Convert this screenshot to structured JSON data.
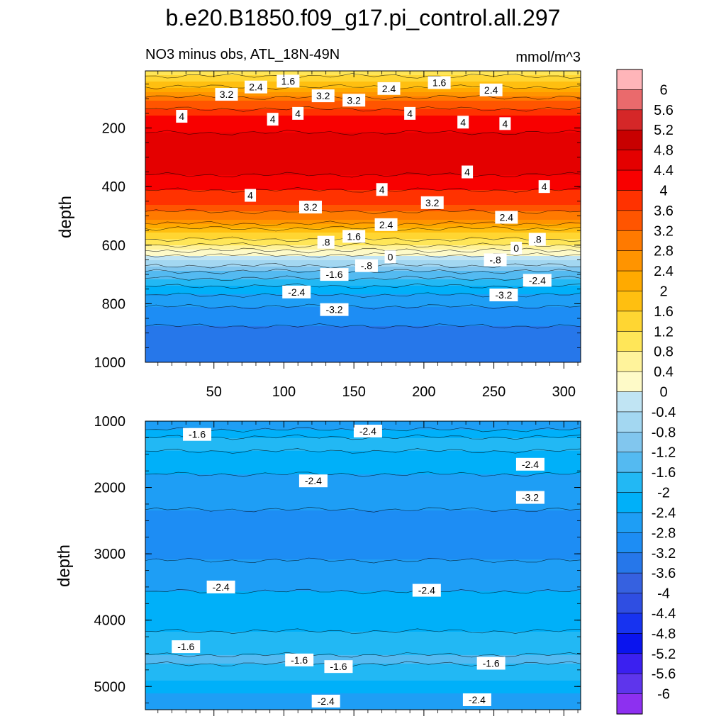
{
  "title": "b.e20.B1850.f09_g17.pi_control.all.297",
  "subtitle_left": "NO3 minus obs, ATL_18N-49N",
  "subtitle_right": "mmol/m^3",
  "chart_data": [
    {
      "type": "heatmap",
      "panel": "upper",
      "ylabel": "depth",
      "xlabel": "",
      "xlim": [
        1,
        312
      ],
      "ylim": [
        1000,
        5
      ],
      "y_inverted": true,
      "x_ticks": [
        50,
        100,
        150,
        200,
        250,
        300
      ],
      "y_ticks": [
        200,
        400,
        600,
        800,
        1000
      ],
      "x_tick_labels": [
        "50",
        "100",
        "150",
        "200",
        "250",
        "300"
      ],
      "y_tick_labels": [
        "200",
        "400",
        "600",
        "800",
        "1000"
      ],
      "depth_profile": [
        {
          "depth": 5,
          "value": 0.8
        },
        {
          "depth": 40,
          "value": 1.6
        },
        {
          "depth": 80,
          "value": 2.4
        },
        {
          "depth": 110,
          "value": 3.2
        },
        {
          "depth": 160,
          "value": 4.0
        },
        {
          "depth": 230,
          "value": 4.5
        },
        {
          "depth": 320,
          "value": 4.7
        },
        {
          "depth": 400,
          "value": 4.1
        },
        {
          "depth": 460,
          "value": 3.6
        },
        {
          "depth": 510,
          "value": 2.8
        },
        {
          "depth": 560,
          "value": 1.6
        },
        {
          "depth": 610,
          "value": 0.6
        },
        {
          "depth": 650,
          "value": -0.4
        },
        {
          "depth": 700,
          "value": -1.4
        },
        {
          "depth": 760,
          "value": -2.3
        },
        {
          "depth": 830,
          "value": -3.0
        },
        {
          "depth": 900,
          "value": -3.3
        },
        {
          "depth": 1000,
          "value": -3.4
        }
      ],
      "contour_labels": [
        {
          "text": "1.6",
          "x": 103,
          "depth": 40
        },
        {
          "text": "1.6",
          "x": 211,
          "depth": 45
        },
        {
          "text": "2.4",
          "x": 80,
          "depth": 60
        },
        {
          "text": "2.4",
          "x": 175,
          "depth": 65
        },
        {
          "text": "2.4",
          "x": 248,
          "depth": 70
        },
        {
          "text": "3.2",
          "x": 59,
          "depth": 85
        },
        {
          "text": "3.2",
          "x": 128,
          "depth": 90
        },
        {
          "text": "3.2",
          "x": 150,
          "depth": 105
        },
        {
          "text": "4",
          "x": 27,
          "depth": 160
        },
        {
          "text": "4",
          "x": 92,
          "depth": 170
        },
        {
          "text": "4",
          "x": 110,
          "depth": 150
        },
        {
          "text": "4",
          "x": 190,
          "depth": 150
        },
        {
          "text": "4",
          "x": 228,
          "depth": 180
        },
        {
          "text": "4",
          "x": 258,
          "depth": 185
        },
        {
          "text": "4",
          "x": 231,
          "depth": 350
        },
        {
          "text": "4",
          "x": 170,
          "depth": 410
        },
        {
          "text": "4",
          "x": 286,
          "depth": 400
        },
        {
          "text": "4",
          "x": 76,
          "depth": 430
        },
        {
          "text": "3.2",
          "x": 119,
          "depth": 470
        },
        {
          "text": "3.2",
          "x": 206,
          "depth": 455
        },
        {
          "text": "2.4",
          "x": 173,
          "depth": 530
        },
        {
          "text": "2.4",
          "x": 259,
          "depth": 505
        },
        {
          "text": "1.6",
          "x": 150,
          "depth": 570
        },
        {
          "text": ".8",
          "x": 130,
          "depth": 590
        },
        {
          "text": ".8",
          "x": 281,
          "depth": 580
        },
        {
          "text": "0",
          "x": 176,
          "depth": 640
        },
        {
          "text": "0",
          "x": 266,
          "depth": 610
        },
        {
          "text": "-.8",
          "x": 159,
          "depth": 670
        },
        {
          "text": "-.8",
          "x": 251,
          "depth": 650
        },
        {
          "text": "-1.6",
          "x": 136,
          "depth": 700
        },
        {
          "text": "-2.4",
          "x": 109,
          "depth": 760
        },
        {
          "text": "-2.4",
          "x": 281,
          "depth": 720
        },
        {
          "text": "-3.2",
          "x": 257,
          "depth": 770
        },
        {
          "text": "-3.2",
          "x": 136,
          "depth": 820
        }
      ]
    },
    {
      "type": "heatmap",
      "panel": "lower",
      "ylabel": "depth",
      "xlabel": "",
      "xlim": [
        1,
        312
      ],
      "ylim": [
        5350,
        1000
      ],
      "y_inverted": true,
      "y_ticks": [
        1000,
        2000,
        3000,
        4000,
        5000
      ],
      "y_tick_labels": [
        "1000",
        "2000",
        "3000",
        "4000",
        "5000"
      ],
      "depth_profile": [
        {
          "depth": 1000,
          "value": -2.6
        },
        {
          "depth": 1100,
          "value": -2.5
        },
        {
          "depth": 1300,
          "value": -1.8
        },
        {
          "depth": 1600,
          "value": -2.2
        },
        {
          "depth": 2000,
          "value": -2.6
        },
        {
          "depth": 2500,
          "value": -2.9
        },
        {
          "depth": 3000,
          "value": -2.9
        },
        {
          "depth": 3400,
          "value": -2.5
        },
        {
          "depth": 3900,
          "value": -2.2
        },
        {
          "depth": 4300,
          "value": -1.9
        },
        {
          "depth": 4600,
          "value": -1.5
        },
        {
          "depth": 4900,
          "value": -2.0
        },
        {
          "depth": 5100,
          "value": -2.4
        },
        {
          "depth": 5350,
          "value": -2.6
        }
      ],
      "contour_labels": [
        {
          "text": "-1.6",
          "x": 38,
          "depth": 1200
        },
        {
          "text": "-2.4",
          "x": 160,
          "depth": 1150
        },
        {
          "text": "-2.4",
          "x": 276,
          "depth": 1650
        },
        {
          "text": "-2.4",
          "x": 121,
          "depth": 1900
        },
        {
          "text": "-3.2",
          "x": 276,
          "depth": 2150
        },
        {
          "text": "-2.4",
          "x": 55,
          "depth": 3500
        },
        {
          "text": "-2.4",
          "x": 202,
          "depth": 3550
        },
        {
          "text": "-1.6",
          "x": 30,
          "depth": 4400
        },
        {
          "text": "-1.6",
          "x": 111,
          "depth": 4600
        },
        {
          "text": "-1.6",
          "x": 139,
          "depth": 4700
        },
        {
          "text": "-1.6",
          "x": 248,
          "depth": 4650
        },
        {
          "text": "-2.4",
          "x": 130,
          "depth": 5220
        },
        {
          "text": "-2.4",
          "x": 238,
          "depth": 5200
        }
      ]
    }
  ],
  "colorbar": {
    "levels": [
      "6",
      "5.6",
      "5.2",
      "4.8",
      "4.4",
      "4",
      "3.6",
      "3.2",
      "2.8",
      "2.4",
      "2",
      "1.6",
      "1.2",
      "0.8",
      "0.4",
      "0",
      "-0.4",
      "-0.8",
      "-1.2",
      "-1.6",
      "-2",
      "-2.4",
      "-2.8",
      "-3.2",
      "-3.6",
      "-4",
      "-4.4",
      "-4.8",
      "-5.2",
      "-5.6",
      "-6"
    ],
    "colors": [
      "#ffb5b9",
      "#ea6a6c",
      "#d52728",
      "#c80000",
      "#e40000",
      "#f80000",
      "#ff3200",
      "#ff5500",
      "#ff7a00",
      "#ff9400",
      "#ffaa00",
      "#ffbf10",
      "#ffd632",
      "#ffe658",
      "#fff39b",
      "#fefac8",
      "#c0e4f3",
      "#a3d7f1",
      "#81c6ee",
      "#54baf1",
      "#22b8f4",
      "#00b0f9",
      "#1e9ef5",
      "#1d8df4",
      "#2677ea",
      "#3661e0",
      "#2f4ee2",
      "#1733f0",
      "#0a14ee",
      "#3b20f0",
      "#5e35ec",
      "#8d30f0"
    ]
  }
}
